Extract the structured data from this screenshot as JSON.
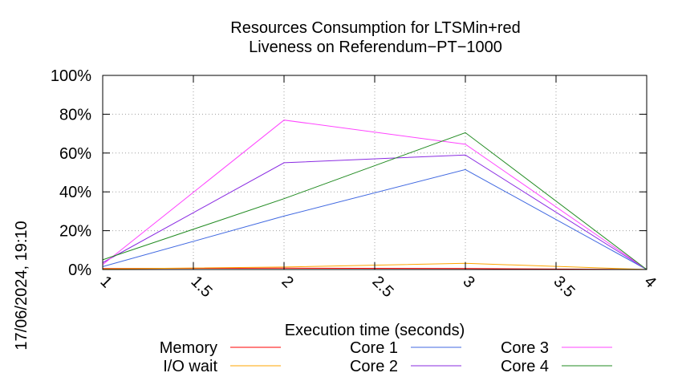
{
  "chart_data": {
    "type": "line",
    "title": [
      "Resources Consumption for LTSMin+red",
      "Liveness on Referendum−PT−1000"
    ],
    "xlabel": "Execution time (seconds)",
    "ylabel": "",
    "xlim": [
      1,
      4
    ],
    "ylim": [
      0,
      100
    ],
    "xticks": [
      "1",
      "1.5",
      "2",
      "2.5",
      "3",
      "3.5",
      "4"
    ],
    "yticks": [
      "0%",
      "20%",
      "40%",
      "60%",
      "80%",
      "100%"
    ],
    "grid": true,
    "legend_position": "bottom",
    "timestamp": "17/06/2024, 19:10",
    "x": [
      1,
      2,
      3,
      4
    ],
    "series": [
      {
        "name": "Memory",
        "color": "#ff0000",
        "values": [
          0.5,
          0.7,
          0.5,
          0
        ]
      },
      {
        "name": "I/O wait",
        "color": "#ffa500",
        "values": [
          0.3,
          1.3,
          3.2,
          0
        ]
      },
      {
        "name": "Core 1",
        "color": "#4169e1",
        "values": [
          1.5,
          27.5,
          51.5,
          0
        ]
      },
      {
        "name": "Core 2",
        "color": "#8a2be2",
        "values": [
          3.5,
          55,
          59,
          0
        ]
      },
      {
        "name": "Core 3",
        "color": "#ff44ff",
        "values": [
          2.5,
          77,
          64.5,
          0
        ]
      },
      {
        "name": "Core 4",
        "color": "#228b22",
        "values": [
          5,
          36.5,
          70.5,
          0
        ]
      }
    ]
  }
}
